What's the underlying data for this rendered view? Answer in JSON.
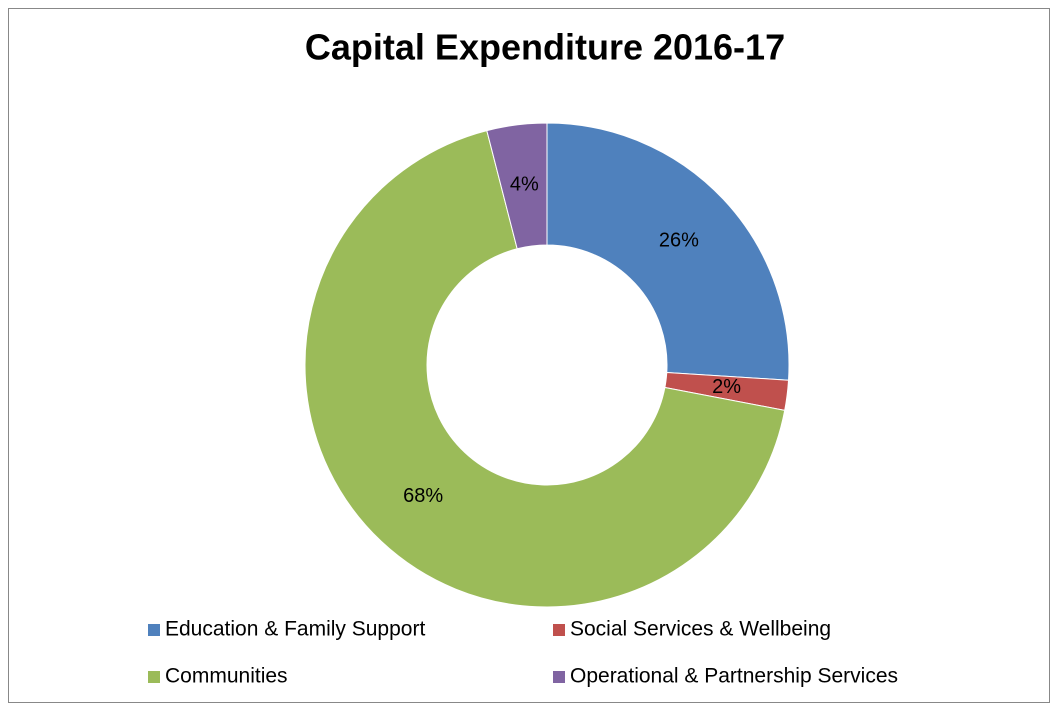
{
  "chart_data": {
    "type": "donut",
    "title": "Capital Expenditure 2016-17",
    "categories": [
      "Education & Family Support",
      "Social Services & Wellbeing",
      "Communities",
      "Operational & Partnership Services"
    ],
    "values": [
      26,
      2,
      68,
      4
    ],
    "value_labels": [
      "26%",
      "2%",
      "68%",
      "4%"
    ],
    "colors": [
      "#4f81bd",
      "#c0504d",
      "#9bbb59",
      "#8064a2"
    ],
    "legend": "bottom"
  }
}
